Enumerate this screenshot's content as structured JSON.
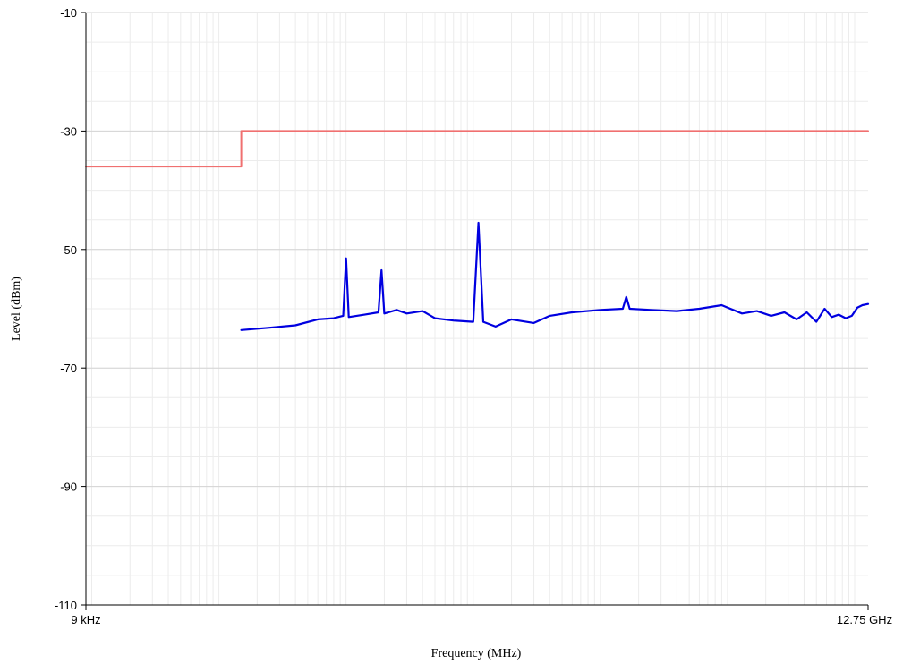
{
  "chart_data": {
    "type": "line",
    "xlabel": "Frequency (MHz)",
    "ylabel": "Level (dBm)",
    "x_tick_labels": {
      "start": "9 kHz",
      "end": "12.75 GHz"
    },
    "x_scale": "log",
    "xlim_mhz": [
      0.009,
      12750
    ],
    "ylim": [
      -110,
      -10
    ],
    "y_ticks": [
      -110,
      -90,
      -70,
      -50,
      -30,
      -10
    ],
    "grid": true,
    "colors": {
      "limit": "#f07070",
      "trace": "#0000e0",
      "grid_major": "#d4d4d4",
      "grid_minor": "#ececec"
    },
    "series": [
      {
        "role": "limit",
        "points": [
          [
            0.009,
            -36
          ],
          [
            0.15,
            -36
          ],
          [
            0.15,
            -30
          ],
          [
            12750,
            -30
          ]
        ]
      },
      {
        "role": "trace",
        "points": [
          [
            0.15,
            -63.6
          ],
          [
            0.25,
            -63.2
          ],
          [
            0.4,
            -62.8
          ],
          [
            0.6,
            -61.8
          ],
          [
            0.8,
            -61.6
          ],
          [
            0.95,
            -61.2
          ],
          [
            1.0,
            -51.5
          ],
          [
            1.05,
            -61.4
          ],
          [
            1.4,
            -61.0
          ],
          [
            1.8,
            -60.6
          ],
          [
            1.9,
            -53.5
          ],
          [
            2.0,
            -60.8
          ],
          [
            2.5,
            -60.2
          ],
          [
            3.0,
            -60.8
          ],
          [
            4.0,
            -60.4
          ],
          [
            5.0,
            -61.6
          ],
          [
            7.0,
            -62.0
          ],
          [
            10.0,
            -62.2
          ],
          [
            11.0,
            -45.5
          ],
          [
            12.0,
            -62.2
          ],
          [
            15.0,
            -63.0
          ],
          [
            20.0,
            -61.8
          ],
          [
            30.0,
            -62.4
          ],
          [
            40.0,
            -61.2
          ],
          [
            60.0,
            -60.6
          ],
          [
            100.0,
            -60.2
          ],
          [
            150.0,
            -60.0
          ],
          [
            160.0,
            -58.0
          ],
          [
            170.0,
            -60.0
          ],
          [
            250.0,
            -60.2
          ],
          [
            400.0,
            -60.4
          ],
          [
            600.0,
            -60.0
          ],
          [
            900.0,
            -59.4
          ],
          [
            1300.0,
            -60.8
          ],
          [
            1700.0,
            -60.4
          ],
          [
            2200.0,
            -61.2
          ],
          [
            2800.0,
            -60.6
          ],
          [
            3500.0,
            -61.8
          ],
          [
            4200.0,
            -60.6
          ],
          [
            5000.0,
            -62.2
          ],
          [
            5800.0,
            -60.0
          ],
          [
            6600.0,
            -61.4
          ],
          [
            7500.0,
            -61.0
          ],
          [
            8500.0,
            -61.6
          ],
          [
            9500.0,
            -61.2
          ],
          [
            10500.0,
            -59.8
          ],
          [
            11500.0,
            -59.4
          ],
          [
            12750.0,
            -59.2
          ]
        ]
      }
    ]
  }
}
